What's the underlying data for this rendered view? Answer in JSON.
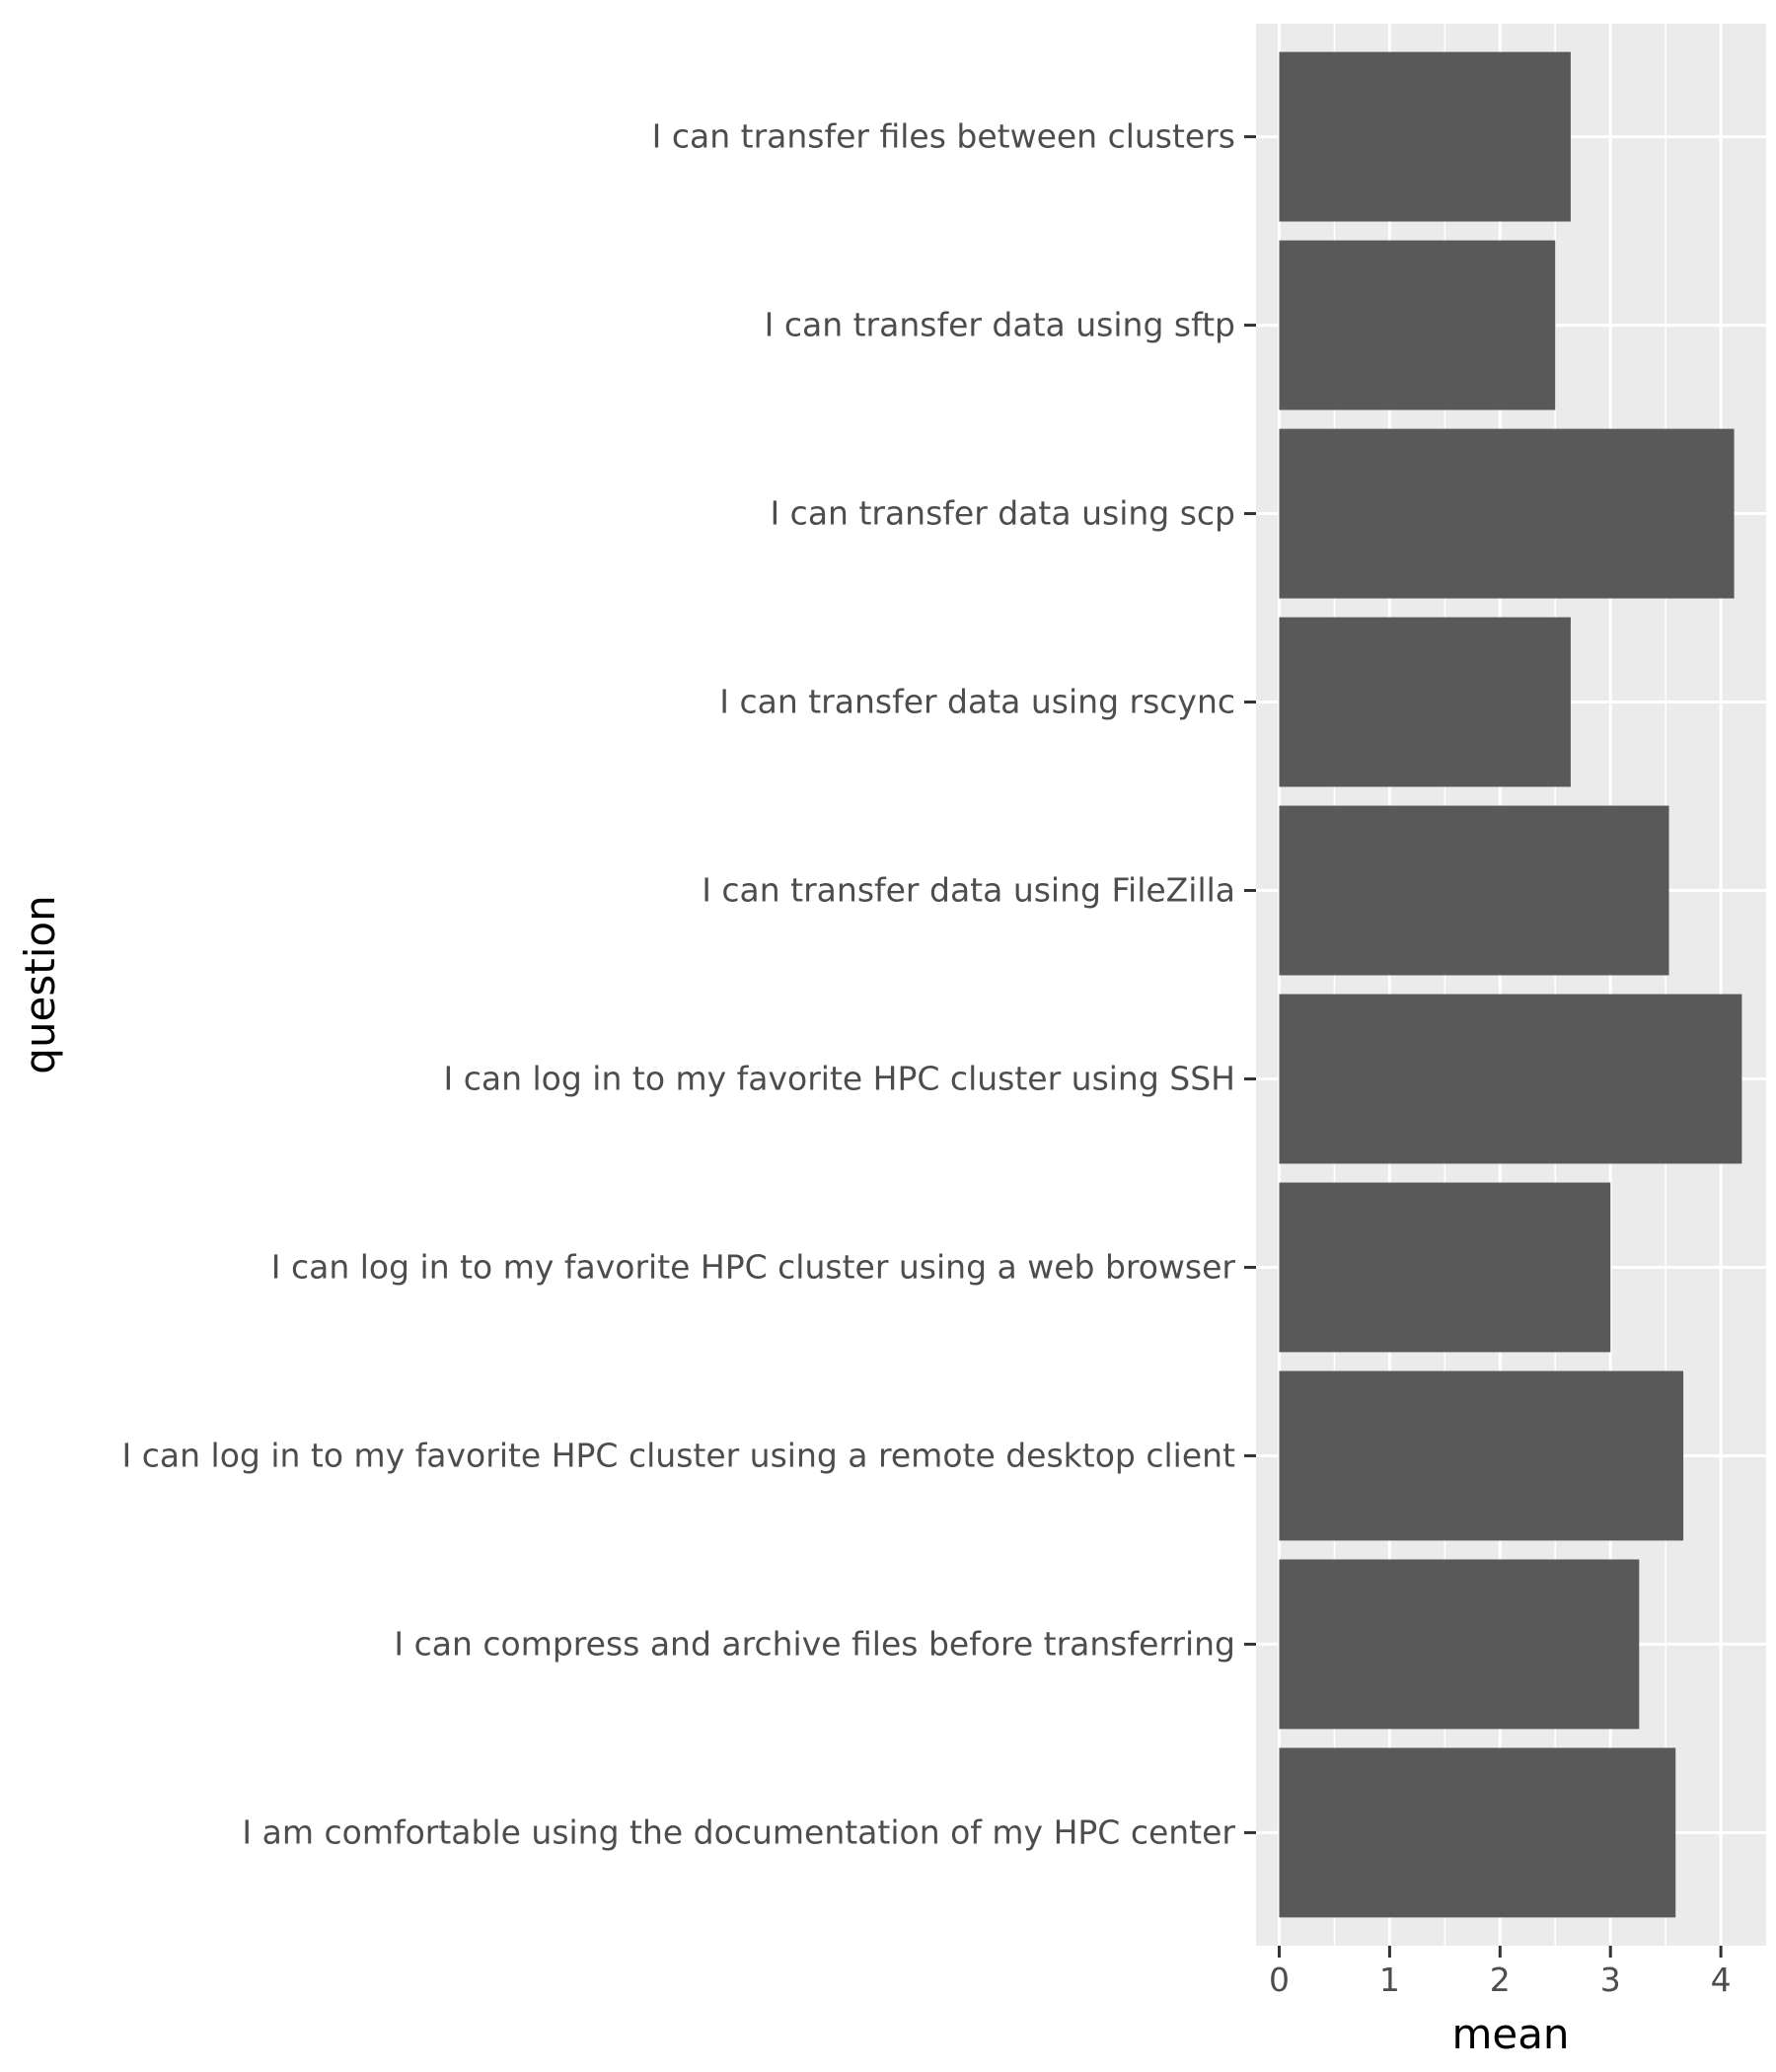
{
  "chart_data": {
    "type": "bar",
    "orientation": "horizontal",
    "categories": [
      "I can transfer files between clusters",
      "I can transfer data using sftp",
      "I can transfer data using scp",
      "I can transfer data using rscync",
      "I can transfer data using FileZilla",
      "I can log in to my favorite HPC cluster using SSH",
      "I can log in to my favorite HPC cluster using a web browser",
      "I can log in to my favorite HPC cluster using a remote desktop client",
      "I can compress and archive files before transferring",
      "I am comfortable using the documentation of my HPC center"
    ],
    "values": [
      2.64,
      2.5,
      4.12,
      2.64,
      3.53,
      4.19,
      3.0,
      3.66,
      3.26,
      3.59
    ],
    "xlabel": "mean",
    "ylabel": "question",
    "xlim": [
      -0.21,
      4.41
    ],
    "xticks": [
      "0",
      "1",
      "2",
      "3",
      "4"
    ],
    "grid": true,
    "bar_color": "#595959",
    "panel_color": "#ebebeb"
  }
}
